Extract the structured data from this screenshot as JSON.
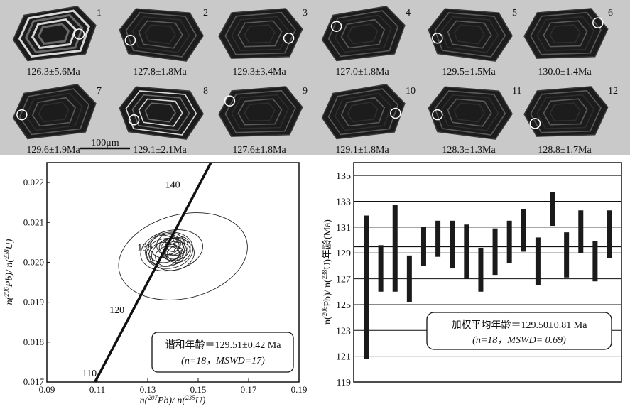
{
  "zircons": {
    "grains": [
      {
        "n": "1",
        "age": "126.3±5.6Ma",
        "row": 0,
        "col": 0,
        "spot": [
          0.78,
          0.5
        ]
      },
      {
        "n": "2",
        "age": "127.8±1.8Ma",
        "row": 0,
        "col": 1,
        "spot": [
          0.18,
          0.62
        ]
      },
      {
        "n": "3",
        "age": "129.3±3.4Ma",
        "row": 0,
        "col": 2,
        "spot": [
          0.82,
          0.58
        ]
      },
      {
        "n": "4",
        "age": "127.0±1.8Ma",
        "row": 0,
        "col": 3,
        "spot": [
          0.22,
          0.35
        ]
      },
      {
        "n": "5",
        "age": "129.5±1.5Ma",
        "row": 0,
        "col": 4,
        "spot": [
          0.16,
          0.58
        ]
      },
      {
        "n": "6",
        "age": "130.0±1.4Ma",
        "row": 0,
        "col": 5,
        "spot": [
          0.86,
          0.28
        ]
      },
      {
        "n": "7",
        "age": "129.6±1.9Ma",
        "row": 1,
        "col": 0,
        "spot": [
          0.16,
          0.55
        ]
      },
      {
        "n": "8",
        "age": "129.1±2.1Ma",
        "row": 1,
        "col": 1,
        "spot": [
          0.22,
          0.65
        ]
      },
      {
        "n": "9",
        "age": "127.6±1.8Ma",
        "row": 1,
        "col": 2,
        "spot": [
          0.18,
          0.28
        ]
      },
      {
        "n": "10",
        "age": "129.1±1.8Ma",
        "row": 1,
        "col": 3,
        "spot": [
          0.86,
          0.52
        ]
      },
      {
        "n": "11",
        "age": "128.3±1.3Ma",
        "row": 1,
        "col": 4,
        "spot": [
          0.16,
          0.55
        ]
      },
      {
        "n": "12",
        "age": "128.8±1.7Ma",
        "row": 1,
        "col": 5,
        "spot": [
          0.18,
          0.72
        ]
      }
    ],
    "scale_label": "100μm"
  },
  "chart_data": [
    {
      "type": "scatter",
      "xlabel_parts": [
        "n(",
        "207",
        "Pb)/ n(",
        "235",
        "U)"
      ],
      "ylabel_parts": [
        "n(",
        "206",
        "Pb)/ n(",
        "238",
        "U)"
      ],
      "xlim": [
        0.09,
        0.19
      ],
      "ylim": [
        0.017,
        0.0225
      ],
      "xticks": [
        "0.09",
        "0.11",
        "0.13",
        "0.15",
        "0.17",
        "0.19"
      ],
      "yticks": [
        "0.017",
        "0.018",
        "0.019",
        "0.020",
        "0.021",
        "0.022"
      ],
      "concordia": [
        {
          "age": "110",
          "x": 0.1137,
          "y": 0.01721
        },
        {
          "age": "120",
          "x": 0.1247,
          "y": 0.0188
        },
        {
          "age": "130",
          "x": 0.1357,
          "y": 0.02037
        },
        {
          "age": "140",
          "x": 0.1468,
          "y": 0.02194
        }
      ],
      "ellipses": [
        {
          "x": 0.144,
          "y": 0.02015,
          "rx": 0.026,
          "ry": 0.00105,
          "rot": -14
        },
        {
          "x": 0.1395,
          "y": 0.0203,
          "rx": 0.0125,
          "ry": 0.0005,
          "rot": -12
        },
        {
          "x": 0.1385,
          "y": 0.0203,
          "rx": 0.0095,
          "ry": 0.00045,
          "rot": -10
        },
        {
          "x": 0.1375,
          "y": 0.02025,
          "rx": 0.008,
          "ry": 0.00035,
          "rot": -8
        },
        {
          "x": 0.137,
          "y": 0.02035,
          "rx": 0.007,
          "ry": 0.00035,
          "rot": -15
        },
        {
          "x": 0.14,
          "y": 0.0202,
          "rx": 0.0085,
          "ry": 0.0004,
          "rot": -10
        },
        {
          "x": 0.141,
          "y": 0.02035,
          "rx": 0.006,
          "ry": 0.0003,
          "rot": -20
        },
        {
          "x": 0.1365,
          "y": 0.0202,
          "rx": 0.006,
          "ry": 0.0003,
          "rot": -5
        },
        {
          "x": 0.139,
          "y": 0.02045,
          "rx": 0.0055,
          "ry": 0.00028,
          "rot": -12
        },
        {
          "x": 0.142,
          "y": 0.02025,
          "rx": 0.005,
          "ry": 0.00025,
          "rot": -15
        },
        {
          "x": 0.136,
          "y": 0.0204,
          "rx": 0.005,
          "ry": 0.00028,
          "rot": -10
        },
        {
          "x": 0.138,
          "y": 0.02015,
          "rx": 0.005,
          "ry": 0.00025,
          "rot": -8
        },
        {
          "x": 0.1405,
          "y": 0.0203,
          "rx": 0.004,
          "ry": 0.00022,
          "rot": -12
        },
        {
          "x": 0.1395,
          "y": 0.02025,
          "rx": 0.0035,
          "ry": 0.0002,
          "rot": -10
        },
        {
          "x": 0.1385,
          "y": 0.0204,
          "rx": 0.004,
          "ry": 0.0002,
          "rot": -18
        },
        {
          "x": 0.1415,
          "y": 0.0204,
          "rx": 0.0045,
          "ry": 0.00022,
          "rot": -12
        },
        {
          "x": 0.14,
          "y": 0.02045,
          "rx": 0.003,
          "ry": 0.00018,
          "rot": -10
        },
        {
          "x": 0.141,
          "y": 0.02022,
          "rx": 0.0032,
          "ry": 0.00018,
          "rot": -10
        }
      ],
      "legend_line1": "谐和年龄＝129.51±0.42 Ma",
      "legend_line2": "(n=18，MSWD=17)"
    },
    {
      "type": "bar",
      "ylabel_parts": [
        "n(",
        "206",
        "Pb)/ n(",
        "238",
        "U)年龄(Ma)"
      ],
      "ylim": [
        119,
        136
      ],
      "yticks": [
        "119",
        "121",
        "123",
        "125",
        "127",
        "129",
        "131",
        "133",
        "135"
      ],
      "mean": 129.5,
      "bars": [
        [
          120.8,
          131.9
        ],
        [
          126.0,
          129.6
        ],
        [
          126.0,
          132.7
        ],
        [
          125.2,
          128.8
        ],
        [
          128.0,
          131.0
        ],
        [
          128.7,
          131.5
        ],
        [
          127.8,
          131.5
        ],
        [
          127.0,
          131.2
        ],
        [
          126.0,
          129.4
        ],
        [
          127.3,
          130.9
        ],
        [
          128.2,
          131.5
        ],
        [
          129.1,
          132.4
        ],
        [
          126.5,
          130.2
        ],
        [
          131.1,
          133.7
        ],
        [
          127.1,
          130.6
        ],
        [
          129.0,
          132.3
        ],
        [
          126.8,
          129.9
        ],
        [
          128.6,
          132.3
        ]
      ],
      "legend_line1": "加权平均年龄＝129.50±0.81 Ma",
      "legend_line2": "(n=18，MSWD= 0.69)"
    }
  ]
}
